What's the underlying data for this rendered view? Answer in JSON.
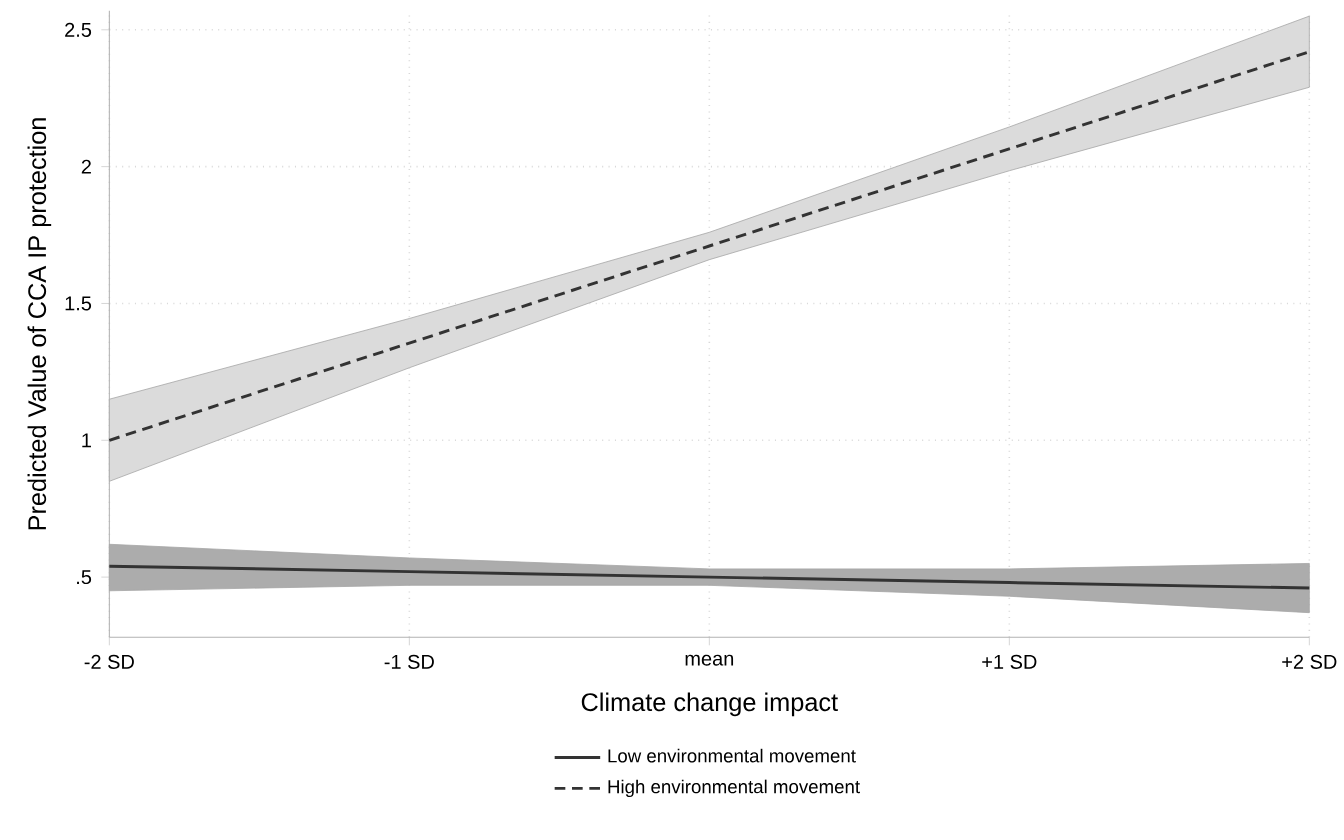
{
  "chart_data": {
    "type": "line",
    "xlabel": "Climate change impact",
    "ylabel": "Predicted Value of CCA IP protection",
    "categories": [
      "-2 SD",
      "-1 SD",
      "mean",
      "+1 SD",
      "+2 SD"
    ],
    "series": [
      {
        "name": "Low environmental movement",
        "color": "#333333",
        "line_style": "solid",
        "values": [
          0.54,
          0.52,
          0.5,
          0.48,
          0.46
        ],
        "lower": [
          0.45,
          0.47,
          0.47,
          0.43,
          0.37
        ],
        "upper": [
          0.62,
          0.57,
          0.53,
          0.53,
          0.55
        ]
      },
      {
        "name": "High environmental movement",
        "color": "#333333",
        "line_style": "dashed",
        "values": [
          1.0,
          1.355,
          1.71,
          2.065,
          2.42
        ],
        "lower": [
          0.85,
          1.265,
          1.66,
          1.985,
          2.29
        ],
        "upper": [
          1.15,
          1.445,
          1.76,
          2.145,
          2.55
        ]
      }
    ],
    "ylim": [
      0.28,
      2.57
    ],
    "yticks": [
      {
        "value": 0.5,
        "label": ".5"
      },
      1,
      1.5,
      2,
      2.5
    ],
    "grid": true,
    "legend": "bottom",
    "marker": "none"
  }
}
